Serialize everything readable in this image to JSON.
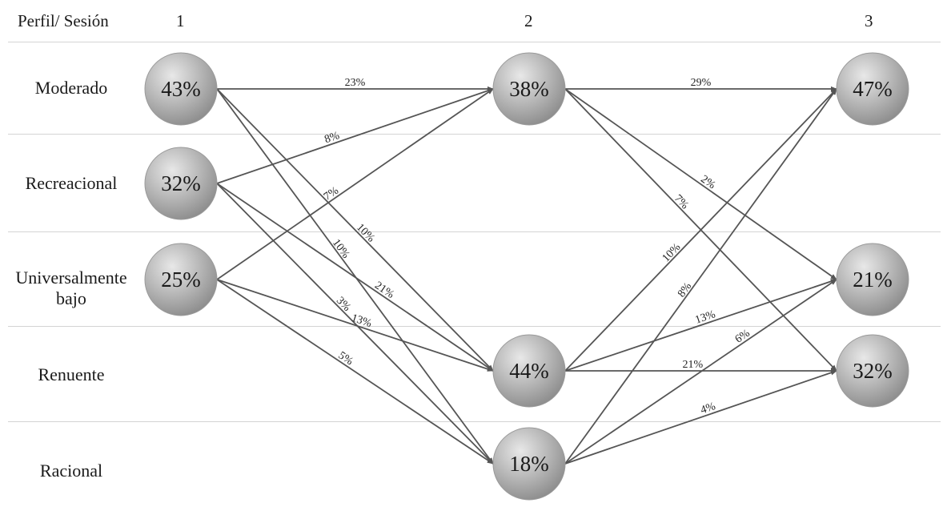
{
  "header": {
    "profile_session_label": "Perfil/ Sesión",
    "sessions": [
      "1",
      "2",
      "3"
    ]
  },
  "profiles": [
    {
      "id": "moderado",
      "lines": [
        "Moderado"
      ]
    },
    {
      "id": "recreacional",
      "lines": [
        "Recreacional"
      ]
    },
    {
      "id": "universalmente-bajo",
      "lines": [
        "Universalmente",
        "bajo"
      ]
    },
    {
      "id": "renuente",
      "lines": [
        "Renuente"
      ]
    },
    {
      "id": "racional",
      "lines": [
        "Racional"
      ]
    }
  ],
  "nodes": [
    {
      "id": "s1-moderado",
      "session": 1,
      "profile": "moderado",
      "label": "43%"
    },
    {
      "id": "s1-recreacional",
      "session": 1,
      "profile": "recreacional",
      "label": "32%"
    },
    {
      "id": "s1-universalmente-bajo",
      "session": 1,
      "profile": "universalmente-bajo",
      "label": "25%"
    },
    {
      "id": "s2-moderado",
      "session": 2,
      "profile": "moderado",
      "label": "38%"
    },
    {
      "id": "s2-renuente",
      "session": 2,
      "profile": "renuente",
      "label": "44%"
    },
    {
      "id": "s2-racional",
      "session": 2,
      "profile": "racional",
      "label": "18%"
    },
    {
      "id": "s3-moderado",
      "session": 3,
      "profile": "moderado",
      "label": "47%"
    },
    {
      "id": "s3-universalmente-bajo",
      "session": 3,
      "profile": "universalmente-bajo",
      "label": "21%"
    },
    {
      "id": "s3-renuente",
      "session": 3,
      "profile": "renuente",
      "label": "32%"
    }
  ],
  "edges": [
    {
      "from": "s1-moderado",
      "to": "s2-moderado",
      "label": "23%"
    },
    {
      "from": "s1-moderado",
      "to": "s2-renuente",
      "label": "10%"
    },
    {
      "from": "s1-moderado",
      "to": "s2-racional",
      "label": "10%"
    },
    {
      "from": "s1-recreacional",
      "to": "s2-moderado",
      "label": "8%"
    },
    {
      "from": "s1-recreacional",
      "to": "s2-renuente",
      "label": "21%"
    },
    {
      "from": "s1-recreacional",
      "to": "s2-racional",
      "label": "3%"
    },
    {
      "from": "s1-universalmente-bajo",
      "to": "s2-moderado",
      "label": "7%"
    },
    {
      "from": "s1-universalmente-bajo",
      "to": "s2-renuente",
      "label": "13%"
    },
    {
      "from": "s1-universalmente-bajo",
      "to": "s2-racional",
      "label": "5%"
    },
    {
      "from": "s2-moderado",
      "to": "s3-moderado",
      "label": "29%"
    },
    {
      "from": "s2-moderado",
      "to": "s3-universalmente-bajo",
      "label": "2%"
    },
    {
      "from": "s2-moderado",
      "to": "s3-renuente",
      "label": "7%"
    },
    {
      "from": "s2-renuente",
      "to": "s3-moderado",
      "label": "10%"
    },
    {
      "from": "s2-renuente",
      "to": "s3-universalmente-bajo",
      "label": "13%"
    },
    {
      "from": "s2-renuente",
      "to": "s3-renuente",
      "label": "21%"
    },
    {
      "from": "s2-racional",
      "to": "s3-moderado",
      "label": "8%"
    },
    {
      "from": "s2-racional",
      "to": "s3-universalmente-bajo",
      "label": "6%"
    },
    {
      "from": "s2-racional",
      "to": "s3-renuente",
      "label": "4%"
    }
  ],
  "colors": {
    "node_light": "#e8e8e8",
    "node_dark": "#8c8c8c",
    "edge": "#555555",
    "separator": "#d4d4d4"
  }
}
